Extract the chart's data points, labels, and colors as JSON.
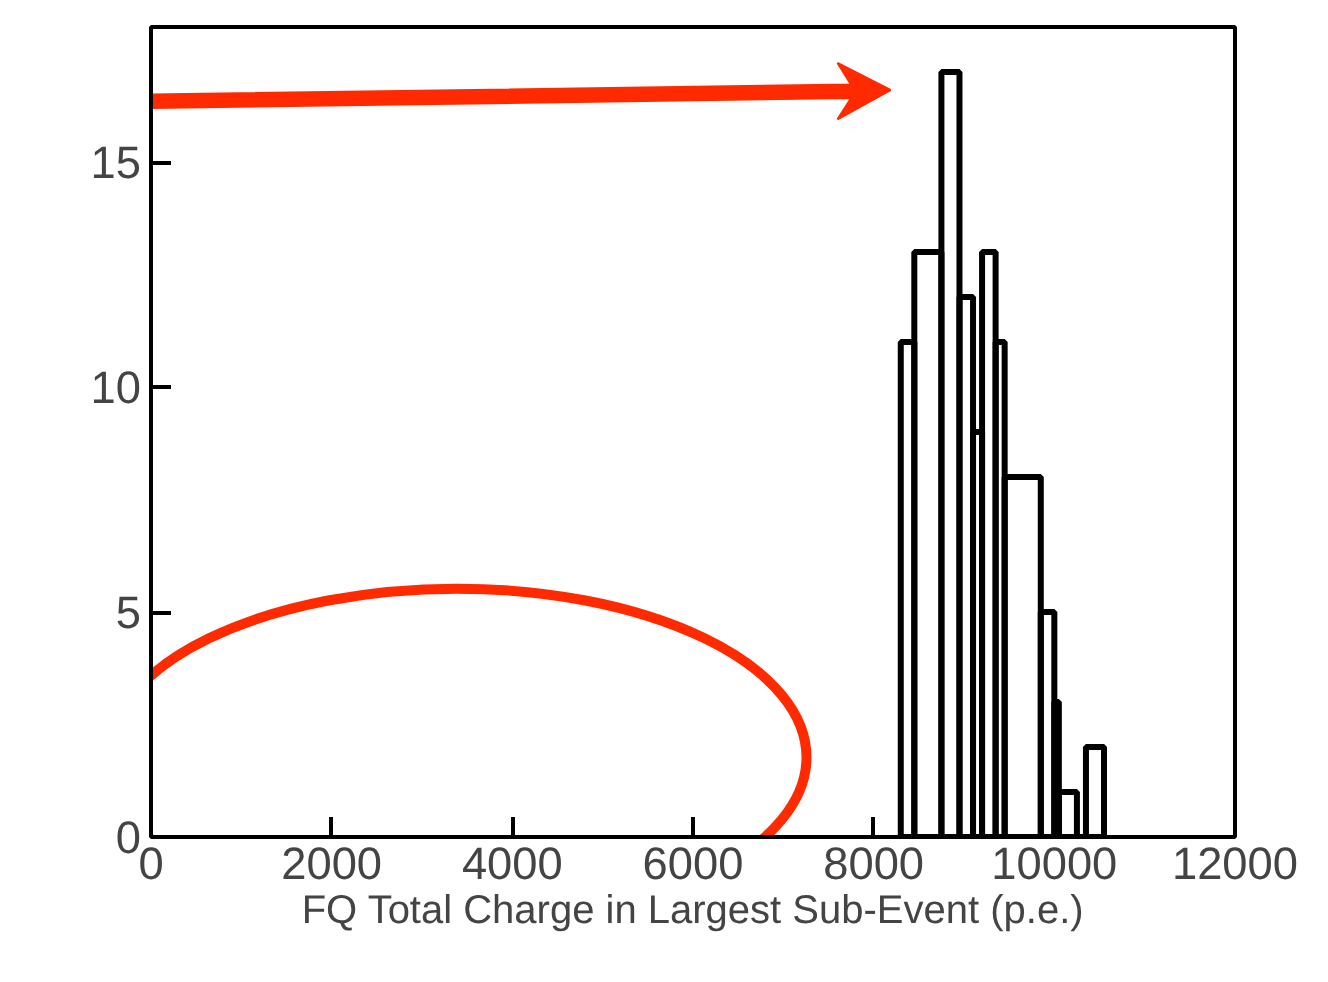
{
  "chart_data": {
    "type": "histogram",
    "xlabel": "FQ Total Charge in Largest Sub-Event (p.e.)",
    "bins": [
      8300,
      8450,
      8750,
      8950,
      9100,
      9200,
      9350,
      9450,
      9850,
      10000,
      10050,
      10250,
      10350,
      10550
    ],
    "values": [
      11,
      13,
      17,
      12,
      9,
      13,
      11,
      8,
      5,
      3,
      1,
      0,
      2
    ],
    "color": "#000000",
    "xlim": [
      0,
      12000
    ],
    "xticks": [
      0,
      2000,
      4000,
      6000,
      8000,
      10000,
      12000
    ],
    "ylim": [
      0,
      18
    ],
    "yticks": [
      0,
      5,
      10,
      15
    ],
    "grid": false
  }
}
